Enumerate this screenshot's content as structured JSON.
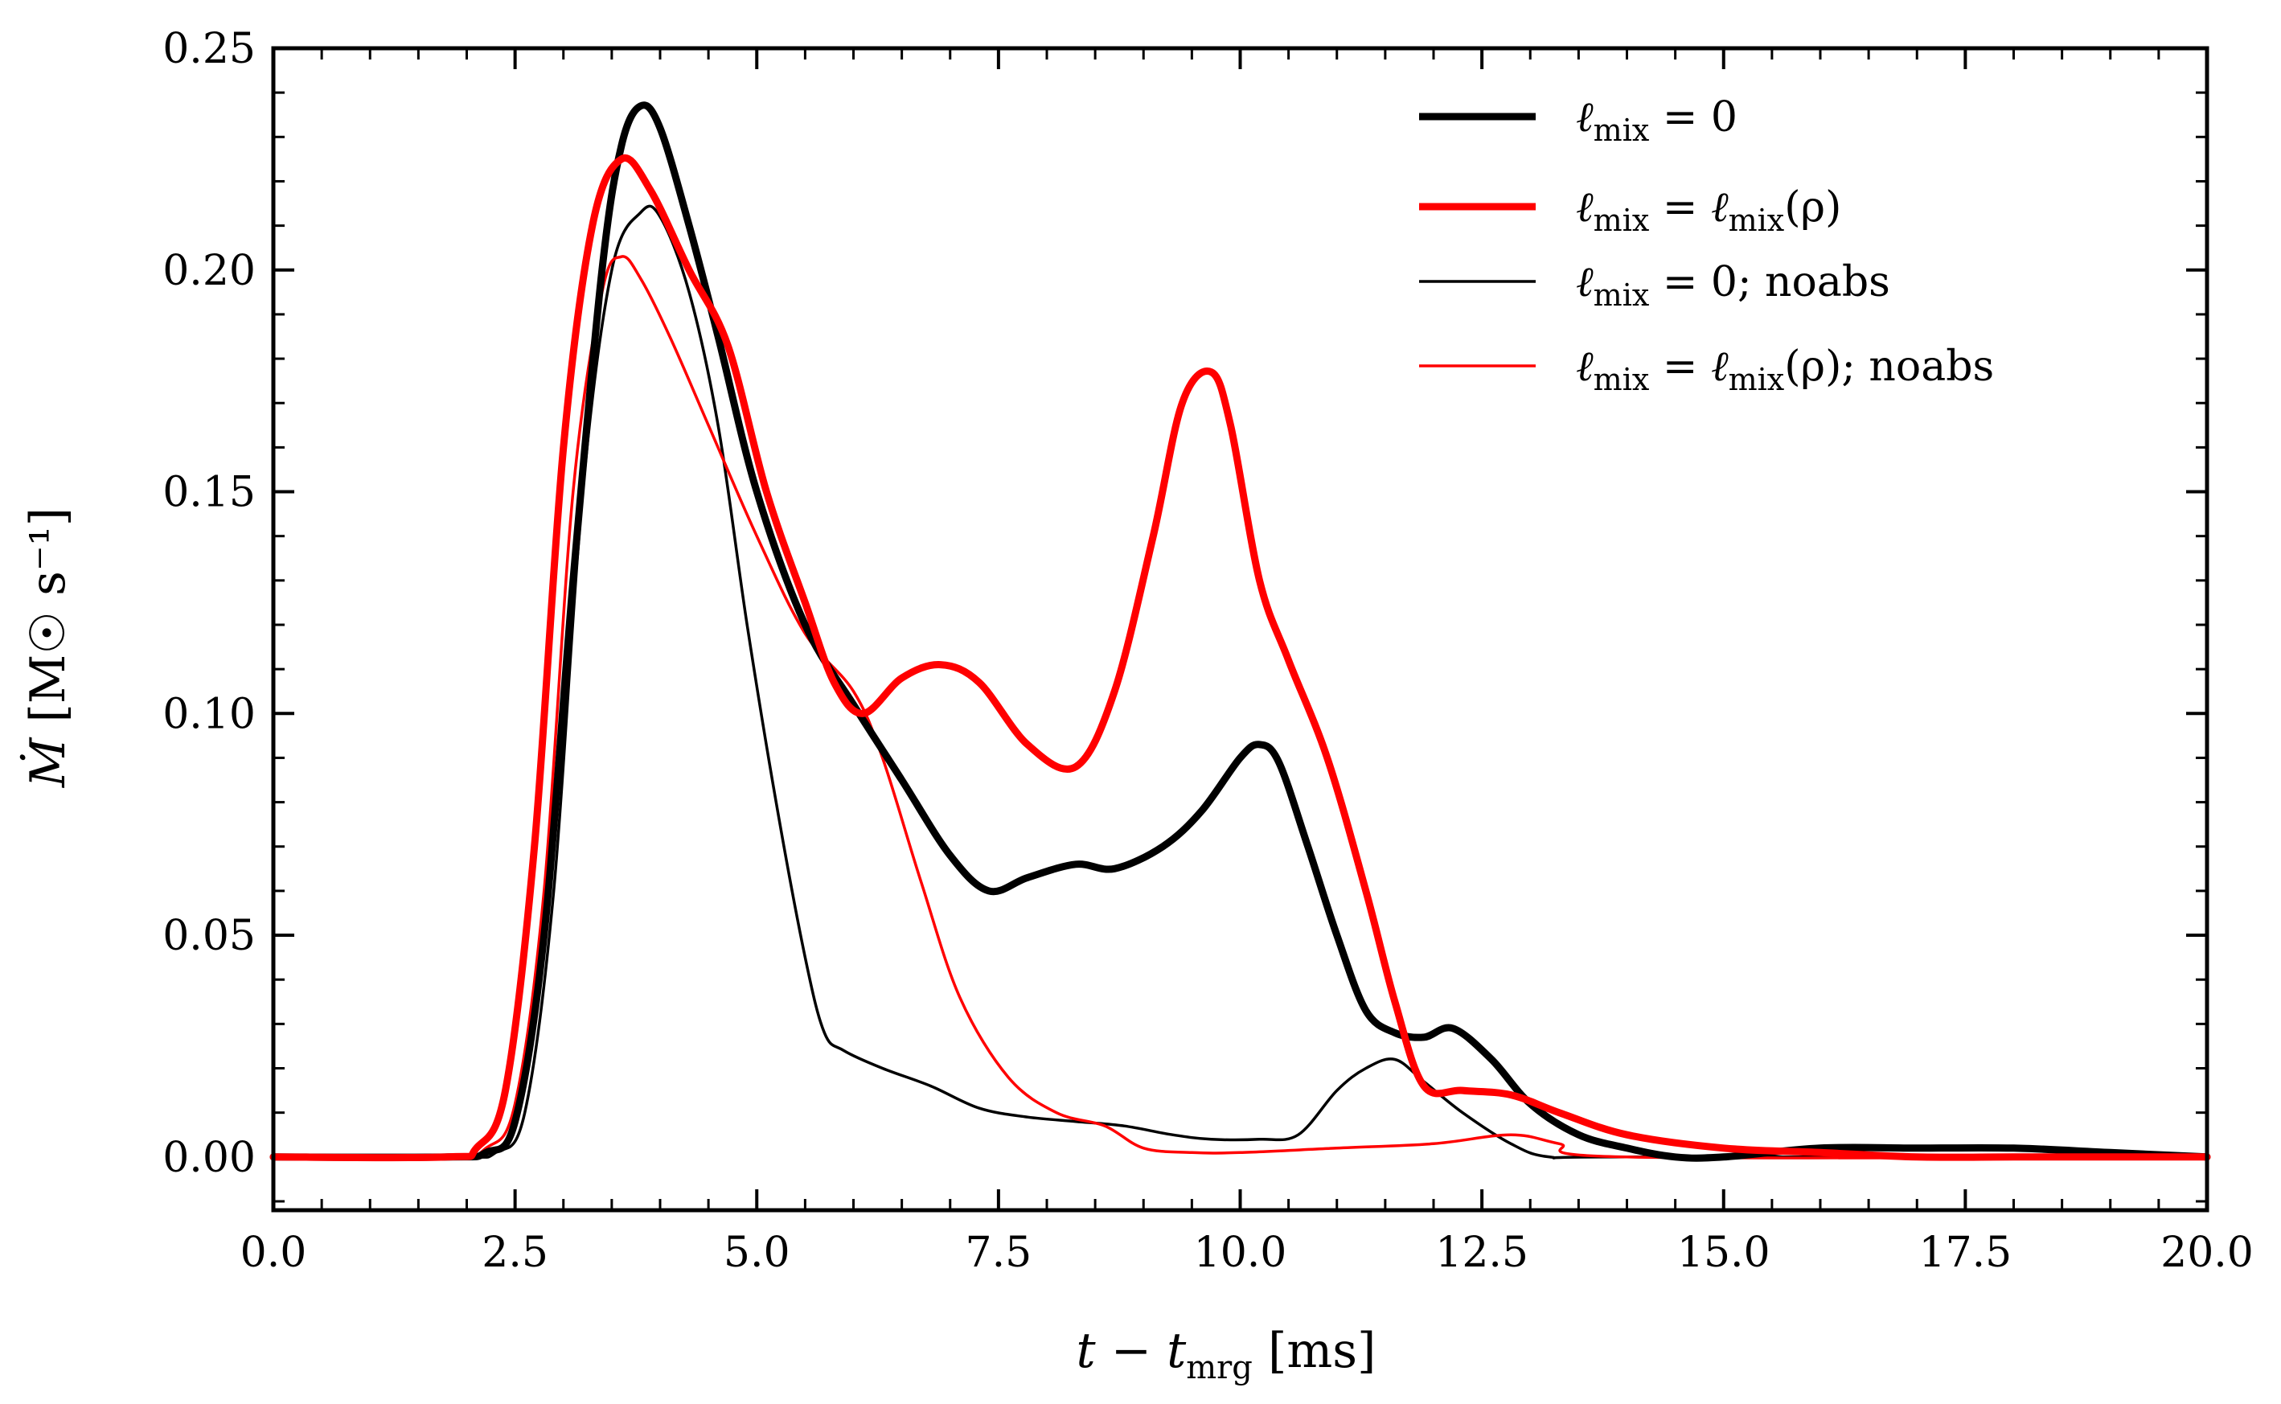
{
  "chart_data": {
    "type": "line",
    "xlabel": "t − t_mrg [ms]",
    "xlabel_parts": {
      "t": "t",
      "minus": " − ",
      "tm": "t",
      "sub": "mrg",
      "unit": " [ms]"
    },
    "ylabel": "Ṁ [M☉ s⁻¹]",
    "ylabel_parts": {
      "m": "Ṁ",
      "unit": " [M☉ s⁻¹]"
    },
    "xlim": [
      0,
      20
    ],
    "ylim": [
      -0.012,
      0.25
    ],
    "xticks": [
      0,
      2.5,
      5,
      7.5,
      10,
      12.5,
      15,
      17.5,
      20
    ],
    "xtick_labels": [
      "0.0",
      "2.5",
      "5.0",
      "7.5",
      "10.0",
      "12.5",
      "15.0",
      "17.5",
      "20.0"
    ],
    "yticks": [
      0,
      0.05,
      0.1,
      0.15,
      0.2,
      0.25
    ],
    "ytick_labels": [
      "0.00",
      "0.05",
      "0.10",
      "0.15",
      "0.20",
      "0.25"
    ],
    "legend_position": "top-right",
    "series": [
      {
        "name": "ℓ_mix = 0",
        "legend_parts": [
          "ℓ",
          "mix",
          " = 0"
        ],
        "color": "#000000",
        "style": "thick",
        "x": [
          0,
          1.8,
          2.2,
          2.5,
          2.8,
          3.1,
          3.4,
          3.6,
          3.8,
          4.0,
          4.3,
          4.6,
          5.0,
          5.5,
          6.0,
          6.5,
          7.0,
          7.4,
          7.8,
          8.3,
          8.7,
          9.2,
          9.6,
          10.0,
          10.2,
          10.4,
          10.7,
          11.0,
          11.3,
          11.6,
          11.9,
          12.2,
          12.6,
          13.0,
          13.5,
          14.0,
          14.5,
          15.0,
          16.0,
          17.0,
          18.0,
          19.0,
          20.0
        ],
        "y": [
          0,
          0,
          0.001,
          0.008,
          0.05,
          0.13,
          0.2,
          0.228,
          0.237,
          0.232,
          0.21,
          0.185,
          0.15,
          0.12,
          0.102,
          0.085,
          0.068,
          0.06,
          0.063,
          0.066,
          0.065,
          0.07,
          0.078,
          0.09,
          0.093,
          0.089,
          0.07,
          0.05,
          0.033,
          0.028,
          0.027,
          0.029,
          0.022,
          0.012,
          0.005,
          0.002,
          0.0,
          0.0,
          0.002,
          0.002,
          0.002,
          0.001,
          0.0
        ]
      },
      {
        "name": "ℓ_mix = ℓ_mix(ρ)",
        "legend_parts": [
          "ℓ",
          "mix",
          " = ",
          "ℓ",
          "mix",
          "(ρ)"
        ],
        "color": "#ff0000",
        "style": "thick",
        "x": [
          0,
          1.8,
          2.1,
          2.4,
          2.7,
          3.0,
          3.3,
          3.6,
          3.9,
          4.3,
          4.7,
          5.1,
          5.5,
          5.8,
          6.1,
          6.5,
          6.9,
          7.3,
          7.8,
          8.3,
          8.7,
          9.1,
          9.4,
          9.7,
          9.9,
          10.2,
          10.5,
          10.9,
          11.3,
          11.6,
          11.9,
          12.3,
          12.8,
          13.3,
          14.0,
          15.0,
          16.0,
          17.0,
          18.0,
          19.0,
          20.0
        ],
        "y": [
          0,
          0,
          0.002,
          0.015,
          0.07,
          0.16,
          0.21,
          0.225,
          0.218,
          0.2,
          0.183,
          0.15,
          0.125,
          0.107,
          0.1,
          0.108,
          0.111,
          0.107,
          0.093,
          0.088,
          0.105,
          0.14,
          0.17,
          0.177,
          0.165,
          0.13,
          0.112,
          0.09,
          0.06,
          0.035,
          0.016,
          0.015,
          0.014,
          0.01,
          0.005,
          0.002,
          0.001,
          0.0,
          0.0,
          0.0,
          0.0
        ]
      },
      {
        "name": "ℓ_mix = 0; noabs",
        "legend_parts": [
          "ℓ",
          "mix",
          " = 0;  noabs"
        ],
        "color": "#000000",
        "style": "thin",
        "x": [
          0,
          1.9,
          2.3,
          2.6,
          2.9,
          3.2,
          3.5,
          3.8,
          4.0,
          4.3,
          4.6,
          4.9,
          5.2,
          5.5,
          5.7,
          5.9,
          6.3,
          6.8,
          7.3,
          7.8,
          8.3,
          8.8,
          9.3,
          9.7,
          10.2,
          10.6,
          11.0,
          11.3,
          11.6,
          11.9,
          12.3,
          12.8,
          13.2,
          14.0,
          20.0
        ],
        "y": [
          0,
          0,
          0.001,
          0.01,
          0.06,
          0.15,
          0.2,
          0.213,
          0.212,
          0.195,
          0.165,
          0.12,
          0.08,
          0.045,
          0.028,
          0.024,
          0.02,
          0.016,
          0.011,
          0.009,
          0.008,
          0.007,
          0.005,
          0.004,
          0.004,
          0.005,
          0.015,
          0.02,
          0.022,
          0.017,
          0.01,
          0.003,
          0.0,
          0.0,
          0.0
        ]
      },
      {
        "name": "ℓ_mix = ℓ_mix(ρ); noabs",
        "legend_parts": [
          "ℓ",
          "mix",
          " = ",
          "ℓ",
          "mix",
          "(ρ);  noabs"
        ],
        "color": "#ff0000",
        "style": "thin",
        "x": [
          0,
          1.8,
          2.2,
          2.5,
          2.8,
          3.1,
          3.4,
          3.6,
          3.8,
          4.1,
          4.5,
          5.0,
          5.5,
          6.0,
          6.3,
          6.7,
          7.1,
          7.6,
          8.1,
          8.6,
          9.0,
          9.5,
          10.0,
          11.0,
          12.0,
          12.8,
          13.3,
          14.0,
          20.0
        ],
        "y": [
          0,
          0,
          0.002,
          0.012,
          0.06,
          0.15,
          0.195,
          0.203,
          0.198,
          0.185,
          0.165,
          0.14,
          0.118,
          0.105,
          0.09,
          0.062,
          0.036,
          0.018,
          0.01,
          0.007,
          0.002,
          0.001,
          0.001,
          0.002,
          0.003,
          0.005,
          0.003,
          0.0,
          0.0
        ]
      }
    ]
  }
}
